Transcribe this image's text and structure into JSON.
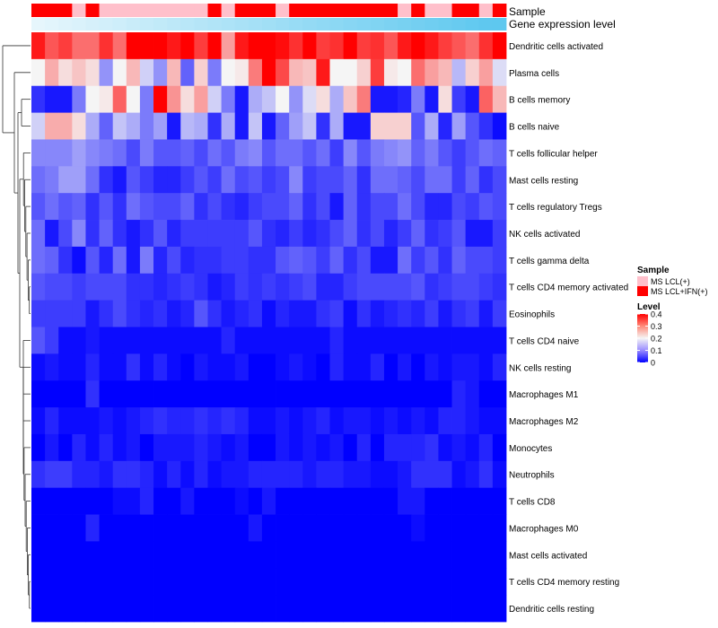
{
  "chart_data": {
    "type": "heatmap",
    "title": "",
    "annotations": {
      "sample_label": "Sample",
      "expression_label": "Gene expression level",
      "sample_groups": [
        "MS LCL+IFN(+)",
        "MS LCL+IFN(+)",
        "MS LCL+IFN(+)",
        "MS LCL(+)",
        "MS LCL+IFN(+)",
        "MS LCL(+)",
        "MS LCL(+)",
        "MS LCL(+)",
        "MS LCL(+)",
        "MS LCL(+)",
        "MS LCL(+)",
        "MS LCL(+)",
        "MS LCL(+)",
        "MS LCL+IFN(+)",
        "MS LCL(+)",
        "MS LCL+IFN(+)",
        "MS LCL+IFN(+)",
        "MS LCL+IFN(+)",
        "MS LCL(+)",
        "MS LCL+IFN(+)",
        "MS LCL+IFN(+)",
        "MS LCL+IFN(+)",
        "MS LCL+IFN(+)",
        "MS LCL+IFN(+)",
        "MS LCL+IFN(+)",
        "MS LCL+IFN(+)",
        "MS LCL+IFN(+)",
        "MS LCL(+)",
        "MS LCL+IFN(+)",
        "MS LCL(+)",
        "MS LCL(+)",
        "MS LCL+IFN(+)",
        "MS LCL+IFN(+)",
        "MS LCL(+)",
        "MS LCL+IFN(+)"
      ],
      "expression_levels": [
        0.0,
        0.03,
        0.06,
        0.09,
        0.12,
        0.15,
        0.18,
        0.21,
        0.24,
        0.27,
        0.3,
        0.33,
        0.36,
        0.39,
        0.42,
        0.45,
        0.48,
        0.51,
        0.54,
        0.57,
        0.6,
        0.63,
        0.66,
        0.69,
        0.72,
        0.75,
        0.78,
        0.81,
        0.84,
        0.87,
        0.9,
        0.93,
        0.96,
        0.99,
        1.0
      ]
    },
    "rows": [
      "Dendritic cells activated",
      "Plasma cells",
      "B cells memory",
      "B cells naive",
      "T cells follicular helper",
      "Mast cells resting",
      "T cells regulatory  Tregs",
      "NK cells activated",
      "T cells gamma delta",
      "T cells CD4 memory activated",
      "Eosinophils",
      "T cells CD4 naive",
      "NK cells resting",
      "Macrophages M1",
      "Macrophages M2",
      "Monocytes",
      "Neutrophils",
      "T cells CD8",
      "Macrophages M0",
      "Mast cells activated",
      "T cells CD4 memory resting",
      "Dendritic cells resting"
    ],
    "values": [
      [
        0.38,
        0.33,
        0.35,
        0.31,
        0.31,
        0.36,
        0.31,
        0.4,
        0.4,
        0.4,
        0.38,
        0.4,
        0.35,
        0.4,
        0.27,
        0.38,
        0.4,
        0.4,
        0.39,
        0.36,
        0.4,
        0.35,
        0.36,
        0.4,
        0.35,
        0.36,
        0.33,
        0.38,
        0.4,
        0.38,
        0.35,
        0.33,
        0.31,
        0.36,
        0.4
      ],
      [
        0.2,
        0.26,
        0.22,
        0.24,
        0.22,
        0.12,
        0.2,
        0.25,
        0.17,
        0.12,
        0.25,
        0.08,
        0.23,
        0.1,
        0.2,
        0.21,
        0.3,
        0.4,
        0.34,
        0.25,
        0.24,
        0.38,
        0.2,
        0.2,
        0.23,
        0.35,
        0.21,
        0.2,
        0.31,
        0.27,
        0.25,
        0.15,
        0.23,
        0.27,
        0.18
      ],
      [
        0.04,
        0.02,
        0.02,
        0.1,
        0.2,
        0.21,
        0.32,
        0.2,
        0.1,
        0.4,
        0.28,
        0.22,
        0.27,
        0.17,
        0.1,
        0.02,
        0.14,
        0.16,
        0.2,
        0.12,
        0.18,
        0.22,
        0.14,
        0.24,
        0.3,
        0.02,
        0.02,
        0.03,
        0.1,
        0.02,
        0.22,
        0.05,
        0.02,
        0.32,
        0.25
      ],
      [
        0.17,
        0.26,
        0.26,
        0.22,
        0.14,
        0.08,
        0.16,
        0.14,
        0.1,
        0.13,
        0.02,
        0.15,
        0.14,
        0.04,
        0.14,
        0.02,
        0.16,
        0.02,
        0.08,
        0.13,
        0.16,
        0.04,
        0.14,
        0.02,
        0.02,
        0.23,
        0.23,
        0.23,
        0.07,
        0.14,
        0.03,
        0.13,
        0.07,
        0.04,
        0.01
      ],
      [
        0.11,
        0.11,
        0.11,
        0.13,
        0.11,
        0.1,
        0.09,
        0.06,
        0.1,
        0.07,
        0.07,
        0.08,
        0.06,
        0.09,
        0.07,
        0.1,
        0.11,
        0.07,
        0.09,
        0.09,
        0.07,
        0.09,
        0.05,
        0.11,
        0.07,
        0.1,
        0.11,
        0.12,
        0.08,
        0.1,
        0.07,
        0.05,
        0.07,
        0.09,
        0.08
      ],
      [
        0.09,
        0.1,
        0.13,
        0.13,
        0.09,
        0.04,
        0.02,
        0.07,
        0.05,
        0.03,
        0.03,
        0.05,
        0.07,
        0.05,
        0.09,
        0.06,
        0.07,
        0.05,
        0.06,
        0.11,
        0.05,
        0.06,
        0.06,
        0.08,
        0.04,
        0.09,
        0.09,
        0.08,
        0.06,
        0.09,
        0.09,
        0.05,
        0.08,
        0.04,
        0.06
      ],
      [
        0.07,
        0.09,
        0.07,
        0.08,
        0.04,
        0.07,
        0.04,
        0.09,
        0.07,
        0.06,
        0.06,
        0.08,
        0.04,
        0.06,
        0.04,
        0.03,
        0.05,
        0.06,
        0.06,
        0.08,
        0.04,
        0.06,
        0.02,
        0.08,
        0.04,
        0.06,
        0.06,
        0.09,
        0.06,
        0.03,
        0.03,
        0.06,
        0.05,
        0.07,
        0.06
      ],
      [
        0.09,
        0.02,
        0.06,
        0.11,
        0.04,
        0.08,
        0.04,
        0.02,
        0.04,
        0.07,
        0.03,
        0.05,
        0.05,
        0.05,
        0.05,
        0.05,
        0.07,
        0.04,
        0.03,
        0.05,
        0.03,
        0.04,
        0.06,
        0.08,
        0.04,
        0.06,
        0.03,
        0.05,
        0.08,
        0.04,
        0.05,
        0.07,
        0.02,
        0.02,
        0.05
      ],
      [
        0.09,
        0.08,
        0.04,
        0.01,
        0.07,
        0.03,
        0.09,
        0.02,
        0.1,
        0.03,
        0.06,
        0.03,
        0.04,
        0.04,
        0.05,
        0.05,
        0.04,
        0.04,
        0.07,
        0.08,
        0.07,
        0.05,
        0.08,
        0.04,
        0.06,
        0.02,
        0.02,
        0.09,
        0.05,
        0.07,
        0.04,
        0.08,
        0.06,
        0.06,
        0.05
      ],
      [
        0.07,
        0.06,
        0.06,
        0.05,
        0.06,
        0.06,
        0.06,
        0.04,
        0.04,
        0.03,
        0.04,
        0.05,
        0.04,
        0.02,
        0.03,
        0.05,
        0.04,
        0.05,
        0.04,
        0.05,
        0.06,
        0.03,
        0.03,
        0.05,
        0.06,
        0.06,
        0.06,
        0.06,
        0.07,
        0.04,
        0.05,
        0.06,
        0.06,
        0.05,
        0.04
      ],
      [
        0.05,
        0.05,
        0.05,
        0.05,
        0.02,
        0.04,
        0.06,
        0.04,
        0.03,
        0.04,
        0.02,
        0.03,
        0.07,
        0.04,
        0.02,
        0.03,
        0.04,
        0.01,
        0.03,
        0.02,
        0.02,
        0.04,
        0.05,
        0.01,
        0.04,
        0.02,
        0.03,
        0.04,
        0.03,
        0.05,
        0.02,
        0.04,
        0.05,
        0.02,
        0.05
      ],
      [
        0.07,
        0.05,
        0.01,
        0.01,
        0.02,
        0.01,
        0.01,
        0.01,
        0.01,
        0.01,
        0.01,
        0.01,
        0.01,
        0.01,
        0.03,
        0.01,
        0.01,
        0.01,
        0.01,
        0.01,
        0.01,
        0.01,
        0.03,
        0.01,
        0.01,
        0.01,
        0.01,
        0.01,
        0.01,
        0.01,
        0.01,
        0.01,
        0.01,
        0.01,
        0.01
      ],
      [
        0.01,
        0.02,
        0.01,
        0.01,
        0.03,
        0.01,
        0.01,
        0.04,
        0.01,
        0.03,
        0.01,
        0.0,
        0.02,
        0.01,
        0.01,
        0.02,
        0.0,
        0.0,
        0.01,
        0.02,
        0.01,
        0.0,
        0.03,
        0.01,
        0.01,
        0.03,
        0.0,
        0.02,
        0.0,
        0.02,
        0.01,
        0.02,
        0.02,
        0.01,
        0.03
      ],
      [
        0.0,
        0.0,
        0.0,
        0.0,
        0.04,
        0.0,
        0.0,
        0.0,
        0.0,
        0.0,
        0.0,
        0.0,
        0.0,
        0.0,
        0.0,
        0.0,
        0.0,
        0.0,
        0.0,
        0.0,
        0.0,
        0.0,
        0.0,
        0.0,
        0.0,
        0.0,
        0.0,
        0.0,
        0.0,
        0.0,
        0.0,
        0.03,
        0.02,
        0.0,
        0.0
      ],
      [
        0.01,
        0.03,
        0.01,
        0.01,
        0.01,
        0.02,
        0.01,
        0.02,
        0.03,
        0.04,
        0.03,
        0.03,
        0.04,
        0.03,
        0.04,
        0.03,
        0.01,
        0.01,
        0.02,
        0.01,
        0.02,
        0.03,
        0.01,
        0.02,
        0.02,
        0.01,
        0.02,
        0.01,
        0.02,
        0.01,
        0.03,
        0.03,
        0.02,
        0.01,
        0.01
      ],
      [
        0.0,
        0.02,
        0.0,
        0.03,
        0.01,
        0.03,
        0.01,
        0.02,
        0.0,
        0.02,
        0.02,
        0.02,
        0.03,
        0.02,
        0.01,
        0.02,
        0.0,
        0.0,
        0.02,
        0.01,
        0.02,
        0.01,
        0.02,
        0.0,
        0.03,
        0.0,
        0.03,
        0.03,
        0.03,
        0.04,
        0.01,
        0.02,
        0.01,
        0.03,
        0.0
      ],
      [
        0.04,
        0.05,
        0.05,
        0.03,
        0.03,
        0.02,
        0.04,
        0.04,
        0.03,
        0.01,
        0.03,
        0.01,
        0.03,
        0.01,
        0.02,
        0.02,
        0.03,
        0.03,
        0.03,
        0.03,
        0.02,
        0.03,
        0.03,
        0.02,
        0.02,
        0.01,
        0.01,
        0.02,
        0.04,
        0.04,
        0.04,
        0.01,
        0.02,
        0.04,
        0.01
      ],
      [
        0.0,
        0.0,
        0.0,
        0.0,
        0.0,
        0.0,
        0.01,
        0.01,
        0.03,
        0.0,
        0.0,
        0.02,
        0.0,
        0.0,
        0.0,
        0.01,
        0.0,
        0.02,
        0.0,
        0.0,
        0.0,
        0.0,
        0.0,
        0.0,
        0.0,
        0.0,
        0.0,
        0.02,
        0.02,
        0.0,
        0.0,
        0.0,
        0.0,
        0.0,
        0.0
      ],
      [
        0.0,
        0.0,
        0.0,
        0.0,
        0.03,
        0.0,
        0.0,
        0.0,
        0.0,
        0.0,
        0.0,
        0.0,
        0.0,
        0.0,
        0.0,
        0.0,
        0.02,
        0.0,
        0.0,
        0.0,
        0.0,
        0.0,
        0.0,
        0.0,
        0.0,
        0.0,
        0.0,
        0.0,
        0.01,
        0.0,
        0.0,
        0.0,
        0.0,
        0.0,
        0.0
      ],
      [
        0.0,
        0.0,
        0.0,
        0.0,
        0.0,
        0.0,
        0.0,
        0.0,
        0.0,
        0.0,
        0.0,
        0.0,
        0.0,
        0.0,
        0.0,
        0.0,
        0.0,
        0.0,
        0.0,
        0.0,
        0.0,
        0.0,
        0.0,
        0.0,
        0.0,
        0.0,
        0.0,
        0.0,
        0.0,
        0.0,
        0.0,
        0.0,
        0.0,
        0.0,
        0.0
      ],
      [
        0.0,
        0.0,
        0.0,
        0.0,
        0.0,
        0.0,
        0.0,
        0.0,
        0.0,
        0.0,
        0.0,
        0.0,
        0.0,
        0.0,
        0.0,
        0.0,
        0.0,
        0.0,
        0.0,
        0.0,
        0.0,
        0.0,
        0.0,
        0.0,
        0.0,
        0.0,
        0.0,
        0.0,
        0.0,
        0.0,
        0.0,
        0.0,
        0.0,
        0.0,
        0.0
      ],
      [
        0.0,
        0.0,
        0.0,
        0.0,
        0.0,
        0.0,
        0.0,
        0.0,
        0.0,
        0.0,
        0.0,
        0.0,
        0.0,
        0.0,
        0.0,
        0.0,
        0.0,
        0.0,
        0.0,
        0.0,
        0.0,
        0.0,
        0.0,
        0.0,
        0.0,
        0.0,
        0.0,
        0.0,
        0.0,
        0.0,
        0.0,
        0.0,
        0.0,
        0.0,
        0.0
      ]
    ],
    "color_scale": {
      "min": 0,
      "mid": 0.2,
      "max": 0.4,
      "low_color": "#0000ff",
      "mid_color": "#f5f5f5",
      "high_color": "#ff0000"
    },
    "legend": {
      "sample_title": "Sample",
      "sample_entries": [
        {
          "label": "MS LCL(+)",
          "color": "#ffc0cb"
        },
        {
          "label": "MS LCL+IFN(+)",
          "color": "#ff0000"
        }
      ],
      "level_title": "Level",
      "level_ticks": [
        "0.4",
        "0.3",
        "0.2",
        "0.1",
        "0"
      ],
      "level_tick_values": [
        0.4,
        0.3,
        0.2,
        0.1,
        0
      ],
      "placement": "right"
    },
    "expression_colors": {
      "low": "#e6f6fc",
      "high": "#5ec8ef"
    }
  }
}
